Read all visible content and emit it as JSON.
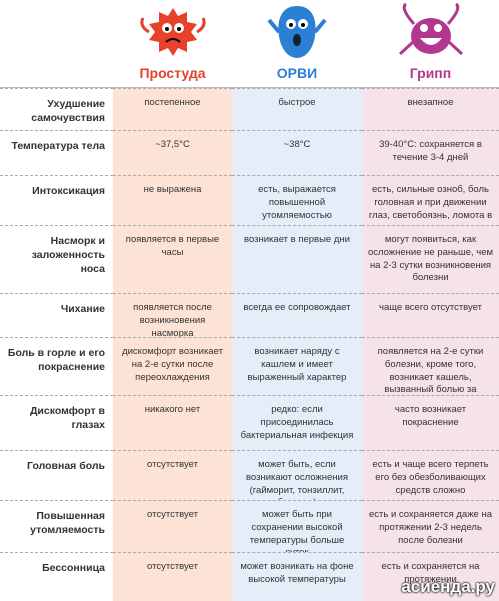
{
  "header": {
    "columns": [
      "Простуда",
      "ОРВИ",
      "Грипп"
    ]
  },
  "rows": [
    {
      "label": "Ухудшение самочувствия",
      "cells": [
        "постепенное",
        "быстрое",
        "внезапное"
      ]
    },
    {
      "label": "Температура тела",
      "cells": [
        "~37,5°С",
        "~38°С",
        "39-40°С: сохраняется в течение 3-4 дней"
      ]
    },
    {
      "label": "Интоксикация",
      "cells": [
        "не выражена",
        "есть, выражается повышенной утомляемостью",
        "есть, сильные озноб, боль головная и при движении глаз, светобоязнь, ломота в теле"
      ]
    },
    {
      "label": "Насморк и заложенность носа",
      "cells": [
        "появляется в первые часы",
        "возникает в первые дни",
        "могут появиться, как осложнение не раньше, чем на 2-3 сутки возникновения болезни"
      ]
    },
    {
      "label": "Чихание",
      "cells": [
        "появляется после возникновения насморка",
        "всегда ее сопровождает",
        "чаще всего отсутствует"
      ]
    },
    {
      "label": "Боль в горле и его покраснение",
      "cells": [
        "дискомфорт возникает на 2-е сутки после переохлаждения",
        "возникает наряду с кашлем и имеет выраженный характер",
        "появляется на 2-е сутки болезни, кроме того, возникает кашель, вызванный болью за грудиной"
      ]
    },
    {
      "label": "Дискомфорт в глазах",
      "cells": [
        "никакого нет",
        "редко: если присоединилась бактериальная инфекция",
        "часто возникает покраснение"
      ]
    },
    {
      "label": "Головная боль",
      "cells": [
        "отсутствует",
        "может быть, если возникают осложнения (гайморит, тонзиллит, бронхит)",
        "есть и чаще всего терпеть его без обезболивающих средств сложно"
      ]
    },
    {
      "label": "Повышенная утомляемость",
      "cells": [
        "отсутствует",
        "может быть при сохранении высокой температуры больше суток",
        "есть и сохраняется даже на протяжении 2-3 недель после болезни"
      ]
    },
    {
      "label": "Бессонница",
      "cells": [
        "отсутствует",
        "может возникать на фоне высокой температуры",
        "есть и сохраняется на протяжении"
      ]
    }
  ],
  "watermark": "асиенда.ру"
}
